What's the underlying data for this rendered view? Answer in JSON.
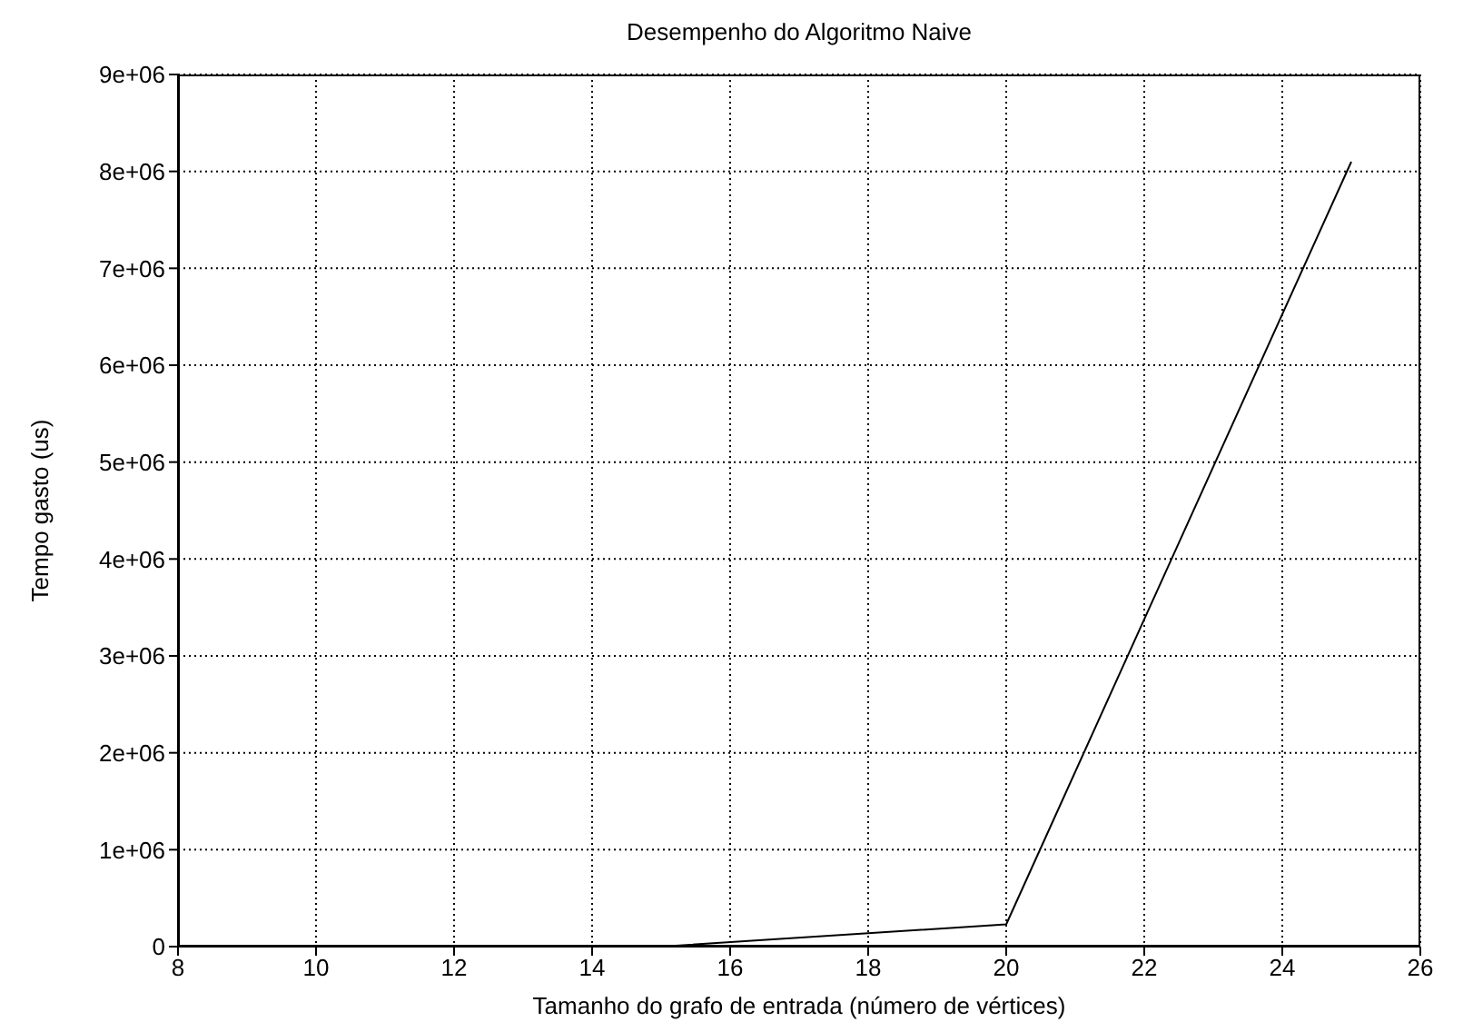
{
  "chart_data": {
    "type": "line",
    "title": "Desempenho do Algoritmo Naive",
    "xlabel": "Tamanho do grafo de entrada (número de vértices)",
    "ylabel": "Tempo gasto (us)",
    "x": [
      10,
      15,
      20,
      25
    ],
    "series": [
      {
        "color": "#000000",
        "values": [
          0,
          0,
          230000,
          8100000
        ]
      }
    ],
    "xlim": [
      8,
      26
    ],
    "xticks": [
      8,
      10,
      12,
      14,
      16,
      18,
      20,
      22,
      24,
      26
    ],
    "ylim": [
      0,
      9000000
    ],
    "yticks": [
      0,
      {
        "value": 1000000,
        "label": "1e+06"
      },
      {
        "value": 2000000,
        "label": "2e+06"
      },
      {
        "value": 3000000,
        "label": "3e+06"
      },
      {
        "value": 4000000,
        "label": "4e+06"
      },
      {
        "value": 5000000,
        "label": "5e+06"
      },
      {
        "value": 6000000,
        "label": "6e+06"
      },
      {
        "value": 7000000,
        "label": "7e+06"
      },
      {
        "value": 8000000,
        "label": "8e+06"
      },
      {
        "value": 9000000,
        "label": "9e+06"
      }
    ],
    "grid": true,
    "marker": "none",
    "line_style": "solid"
  }
}
